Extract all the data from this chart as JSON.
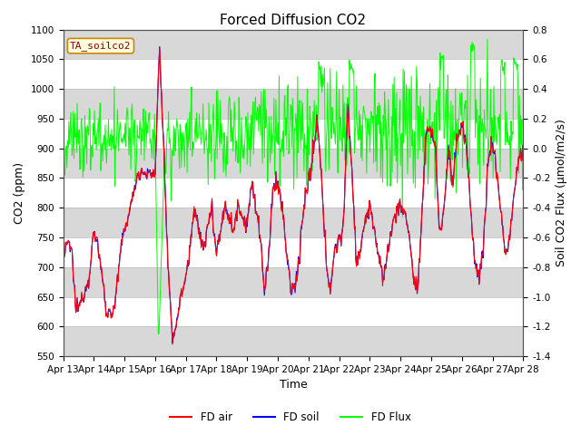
{
  "title": "Forced Diffusion CO2",
  "xlabel": "Time",
  "ylabel_left": "CO2 (ppm)",
  "ylabel_right": "Soil CO2 Flux (μmol/m2/s)",
  "ylim_left": [
    550,
    1100
  ],
  "ylim_right": [
    -1.4,
    0.8
  ],
  "yticks_left": [
    550,
    600,
    650,
    700,
    750,
    800,
    850,
    900,
    950,
    1000,
    1050,
    1100
  ],
  "yticks_right": [
    -1.4,
    -1.2,
    -1.0,
    -0.8,
    -0.6,
    -0.4,
    -0.2,
    0.0,
    0.2,
    0.4,
    0.6,
    0.8
  ],
  "xtick_labels": [
    "Apr 13",
    "Apr 14",
    "Apr 15",
    "Apr 16",
    "Apr 17",
    "Apr 18",
    "Apr 19",
    "Apr 20",
    "Apr 21",
    "Apr 22",
    "Apr 23",
    "Apr 24",
    "Apr 25",
    "Apr 26",
    "Apr 27",
    "Apr 28"
  ],
  "legend_label": "TA_soilco2",
  "legend_entries": [
    "FD air",
    "FD soil",
    "FD Flux"
  ],
  "background_color": "#ffffff",
  "band_color": "#d8d8d8",
  "band_alpha": 1.0,
  "title_fontsize": 11,
  "axis_label_fontsize": 9,
  "tick_fontsize": 7.5
}
